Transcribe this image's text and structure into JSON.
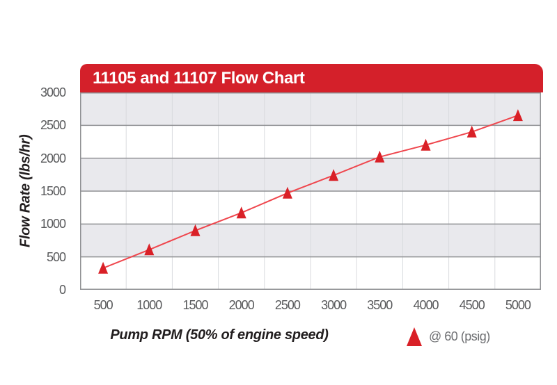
{
  "chart_data": {
    "type": "line",
    "title": "11105 and 11107 Flow Chart",
    "xlabel": "Pump RPM (50% of engine speed)",
    "ylabel": "Flow Rate (lbs/hr)",
    "x": [
      500,
      1000,
      1500,
      2000,
      2500,
      3000,
      3500,
      4000,
      4500,
      5000
    ],
    "series": [
      {
        "name": "@ 60 (psig)",
        "marker": "triangle",
        "values": [
          330,
          610,
          900,
          1170,
          1470,
          1740,
          2020,
          2200,
          2400,
          2650
        ]
      }
    ],
    "ylim": [
      0,
      3000
    ],
    "ytick_step": 500,
    "yticks": [
      "3000",
      "2500",
      "2000",
      "1500",
      "1000",
      "500",
      "0"
    ],
    "xticks": [
      "500",
      "1000",
      "1500",
      "2000",
      "2500",
      "3000",
      "3500",
      "4000",
      "4500",
      "5000"
    ],
    "grid": "horizontal major lines, faint vertical slot lines, alternating gray bands",
    "legend_position": "bottom-right",
    "colors": {
      "banner": "#d4202a",
      "band": "#e9e9ed",
      "line": "#ef464d",
      "marker": "#d92027",
      "grid_major": "#8f9093",
      "grid_minor": "#d9dade",
      "tick_text": "#58595b",
      "axis_title_text": "#221e1f",
      "legend_text": "#6d6e71",
      "title_text": "#ffffff"
    }
  }
}
